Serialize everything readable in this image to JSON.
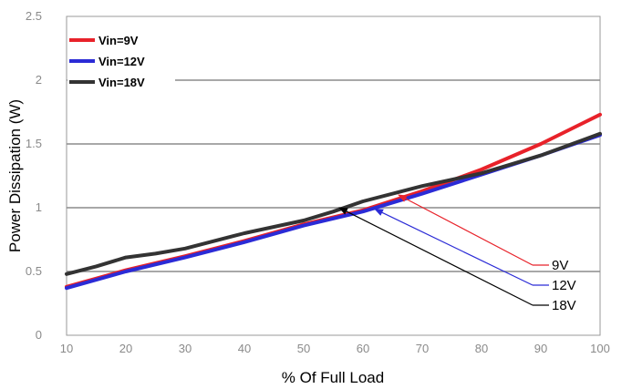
{
  "chart_data": {
    "type": "line",
    "xlabel": "% Of Full Load",
    "ylabel": "Power Dissipation (W)",
    "xlim": [
      10,
      100
    ],
    "ylim": [
      0,
      2.5
    ],
    "xticks": [
      "10",
      "20",
      "30",
      "40",
      "50",
      "60",
      "70",
      "80",
      "90",
      "100"
    ],
    "yticks": [
      "0",
      "0.5",
      "1",
      "1.5",
      "2",
      "2.5"
    ],
    "grid": "horizontal",
    "legend_position": "top-left",
    "series": [
      {
        "name": "Vin=9V",
        "color": "#e8222a",
        "x": [
          10,
          20,
          30,
          40,
          50,
          60,
          70,
          80,
          90,
          100
        ],
        "y": [
          0.38,
          0.51,
          0.62,
          0.74,
          0.87,
          0.98,
          1.13,
          1.3,
          1.5,
          1.73
        ]
      },
      {
        "name": "Vin=12V",
        "color": "#2b2bd6",
        "x": [
          10,
          20,
          30,
          40,
          50,
          60,
          70,
          80,
          90,
          100
        ],
        "y": [
          0.37,
          0.5,
          0.61,
          0.73,
          0.86,
          0.97,
          1.11,
          1.26,
          1.41,
          1.57
        ]
      },
      {
        "name": "Vin=18V",
        "color": "#333333",
        "x": [
          10,
          15,
          20,
          25,
          30,
          40,
          50,
          55,
          60,
          70,
          80,
          90,
          100
        ],
        "y": [
          0.48,
          0.54,
          0.61,
          0.64,
          0.68,
          0.8,
          0.9,
          0.97,
          1.05,
          1.17,
          1.27,
          1.41,
          1.58
        ]
      }
    ],
    "annotations": [
      {
        "label": "9V",
        "color": "#e8222a",
        "target": [
          66,
          1.1
        ]
      },
      {
        "label": "12V",
        "color": "#2b2bd6",
        "target": [
          62,
          0.99
        ]
      },
      {
        "label": "18V",
        "color": "#000000",
        "target": [
          56,
          1.0
        ]
      }
    ]
  }
}
